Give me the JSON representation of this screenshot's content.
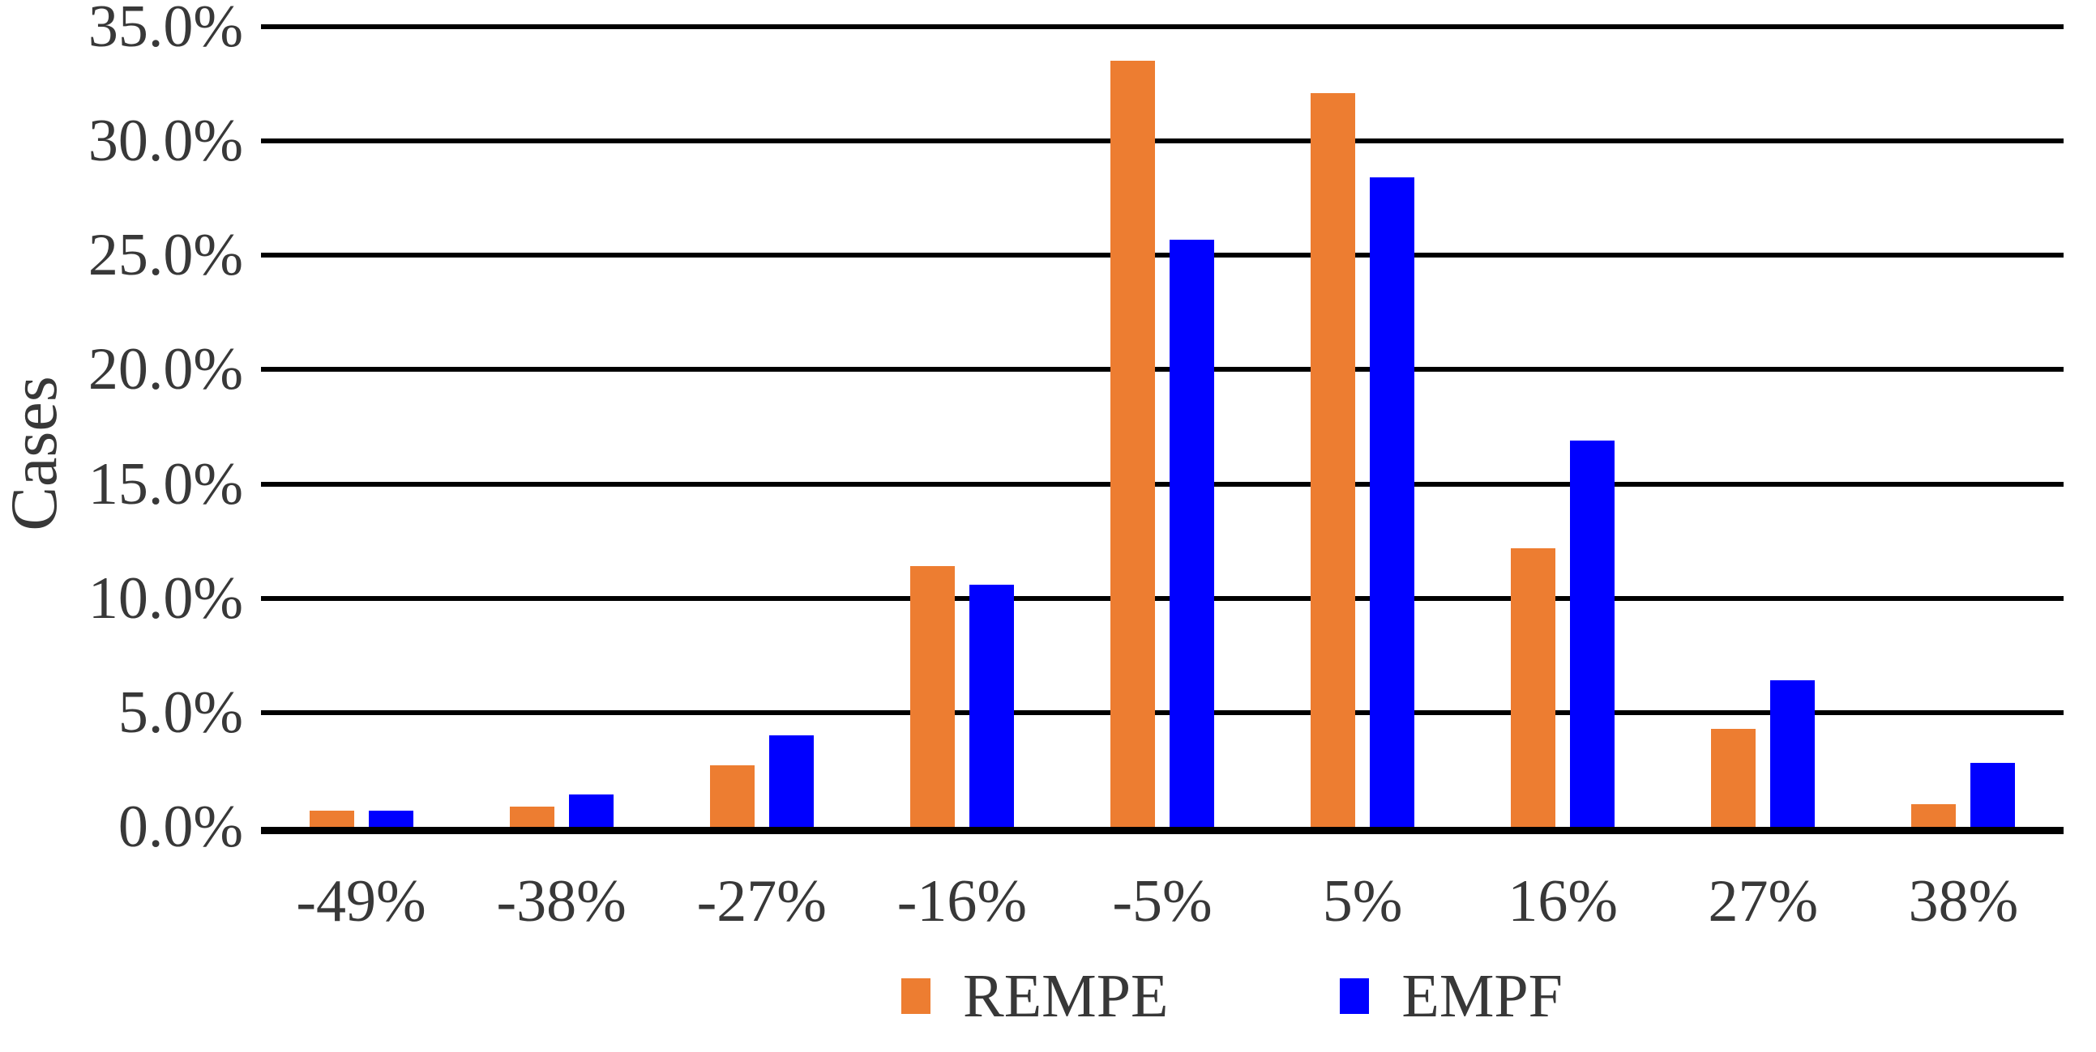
{
  "chart_data": {
    "type": "bar",
    "title": "",
    "xlabel": "",
    "ylabel": "Cases",
    "categories": [
      "-49%",
      "-38%",
      "-27%",
      "-16%",
      "-5%",
      "5%",
      "16%",
      "27%",
      "38%"
    ],
    "series": [
      {
        "name": "REMPE",
        "color": "#ED7D31",
        "values": [
          0.7,
          0.9,
          2.7,
          11.4,
          33.5,
          32.1,
          12.2,
          4.3,
          1.0
        ]
      },
      {
        "name": "EMPF",
        "color": "#0000FF",
        "values": [
          0.7,
          1.4,
          4.0,
          10.6,
          25.7,
          28.4,
          16.9,
          6.4,
          2.8
        ]
      }
    ],
    "ylim": [
      0,
      35
    ],
    "yticks": {
      "values": [
        0,
        5,
        10,
        15,
        20,
        25,
        30,
        35
      ],
      "labels": [
        "0.0%",
        "5.0%",
        "10.0%",
        "15.0%",
        "20.0%",
        "25.0%",
        "30.0%",
        "35.0%"
      ]
    },
    "grid": true,
    "legend_position": "bottom"
  },
  "colors": {
    "text": "#383838",
    "gridline": "#000000",
    "background": "#ffffff",
    "series_rempe": "#ED7D31",
    "series_empf": "#0000FF"
  }
}
